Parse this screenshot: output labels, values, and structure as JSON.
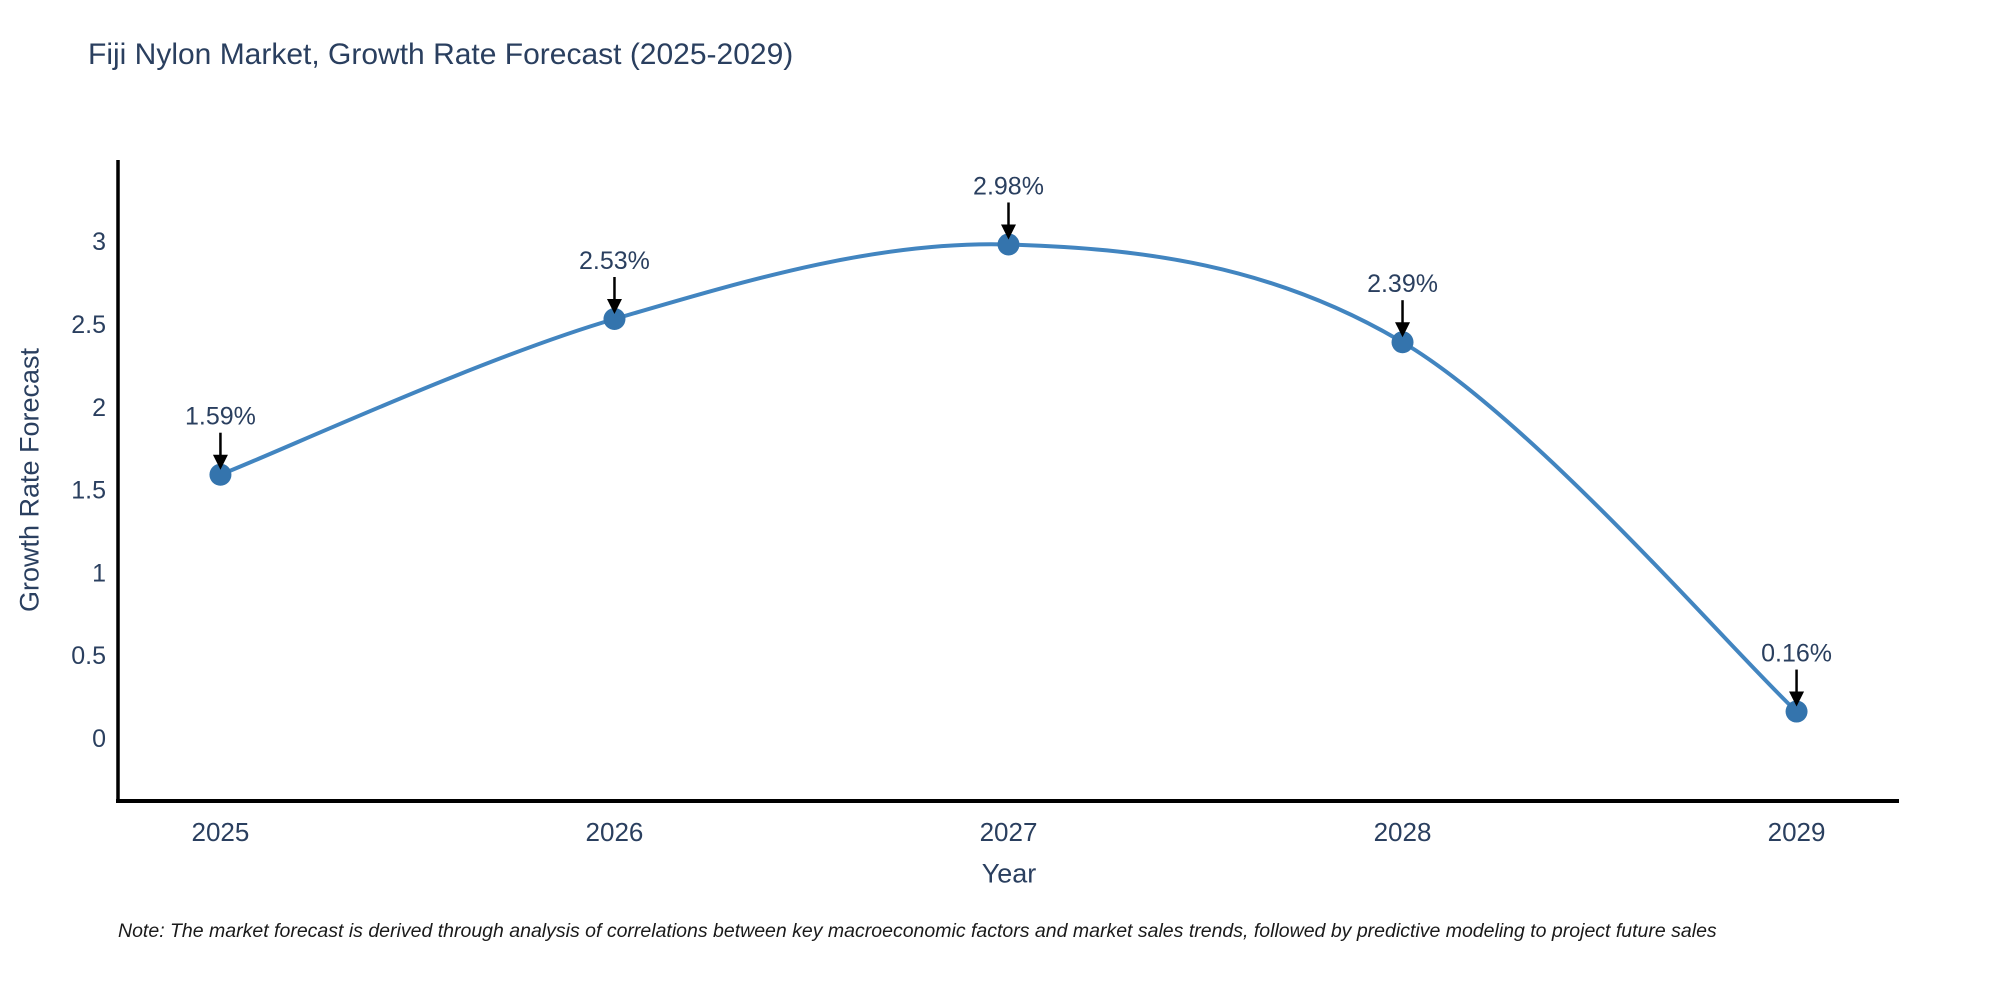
{
  "title": "Fiji Nylon Market, Growth Rate Forecast (2025-2029)",
  "note": "Note: The market forecast is derived through analysis of correlations between key macroeconomic factors and market sales trends, followed by predictive modeling to project future sales",
  "chart_data": {
    "type": "line",
    "title": "Fiji Nylon Market, Growth Rate Forecast (2025-2029)",
    "xlabel": "Year",
    "ylabel": "Growth Rate Forecast",
    "x": [
      2025,
      2026,
      2027,
      2028,
      2029
    ],
    "values": [
      1.59,
      2.53,
      2.98,
      2.39,
      0.16
    ],
    "point_labels": [
      "1.59%",
      "2.53%",
      "2.98%",
      "2.39%",
      "0.16%"
    ],
    "x_tick_labels": [
      "2025",
      "2026",
      "2027",
      "2028",
      "2029"
    ],
    "y_ticks": [
      0,
      0.5,
      1,
      1.5,
      2,
      2.5,
      3
    ],
    "y_tick_labels": [
      "0",
      "0.5",
      "1",
      "1.5",
      "2",
      "2.5",
      "3"
    ],
    "xlim": [
      2024.74,
      2029.26
    ],
    "ylim": [
      -0.38,
      3.49
    ],
    "grid": false,
    "legend": "none",
    "curve": "spline",
    "colors": {
      "line": "#4285c0",
      "marker": "#3474ad",
      "spine": "#000000",
      "text": "#2a3f5f",
      "annotation_arrow": "#000000"
    }
  }
}
